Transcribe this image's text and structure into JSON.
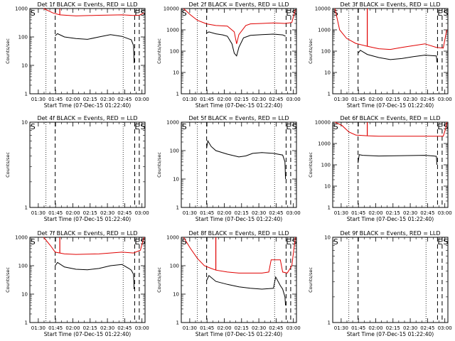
{
  "figure": {
    "x_axis_label": "Start Time (07-Dec-15 01:22:40)",
    "y_axis_label": "Counts/sec",
    "x_tick_labels": [
      "01:30",
      "01:45",
      "02:00",
      "02:15",
      "02:30",
      "02:45",
      "03:00"
    ],
    "y_tick_labels": [
      "1",
      "10",
      "100",
      "1000",
      "10000"
    ],
    "colors": {
      "events": "#000000",
      "lld": "#e00000"
    }
  },
  "chart_data": [
    {
      "type": "line",
      "title": "Det 1f BLACK = Events, RED = LLD",
      "xlabel": "Start Time (07-Dec-15 01:22:40)",
      "ylabel": "Counts/sec",
      "x_unit": "minutes after 01:22:40",
      "xlim": [
        0,
        100
      ],
      "ylim": [
        1,
        1000
      ],
      "y_scale": "log",
      "markers": [
        {
          "label": "S",
          "x": 0.5
        },
        {
          "label": "E",
          "x": 91
        },
        {
          "label": "S",
          "x": 96
        }
      ],
      "dotted_lines": [
        14,
        81
      ],
      "dashed_lines": [
        22,
        91,
        95
      ],
      "series": [
        {
          "name": "Events",
          "color": "#000000",
          "x": [
            22,
            24,
            30,
            40,
            50,
            60,
            70,
            80,
            86,
            88,
            90,
            90.5
          ],
          "y": [
            110,
            130,
            100,
            88,
            82,
            100,
            120,
            105,
            85,
            80,
            50,
            12
          ]
        },
        {
          "name": "LLD",
          "color": "#e00000",
          "x": [
            12,
            20,
            26,
            40,
            60,
            80,
            90,
            95,
            99
          ],
          "y": [
            1000,
            700,
            600,
            550,
            580,
            600,
            570,
            580,
            700
          ],
          "spikes": [
            [
              26,
              1000
            ]
          ]
        }
      ]
    },
    {
      "type": "line",
      "title": "Det 2f BLACK = Events, RED = LLD",
      "xlabel": "Start Time (07-Dec-15 01:22:40)",
      "ylabel": "Counts/sec",
      "x_unit": "minutes after 01:22:40",
      "xlim": [
        0,
        100
      ],
      "ylim": [
        1,
        10000
      ],
      "y_scale": "log",
      "markers": [
        {
          "label": "S",
          "x": 0.5
        },
        {
          "label": "E",
          "x": 91
        },
        {
          "label": "S",
          "x": 96
        }
      ],
      "dotted_lines": [
        14,
        81
      ],
      "dashed_lines": [
        22,
        91,
        95
      ],
      "series": [
        {
          "name": "Events",
          "color": "#000000",
          "x": [
            22,
            24,
            30,
            36,
            40,
            44,
            46,
            48,
            50,
            54,
            60,
            70,
            80,
            88,
            90.5
          ],
          "y": [
            700,
            800,
            650,
            580,
            500,
            220,
            80,
            60,
            150,
            420,
            550,
            600,
            630,
            580,
            500
          ]
        },
        {
          "name": "LLD",
          "color": "#e00000",
          "x": [
            2,
            8,
            14,
            22,
            30,
            40,
            46,
            48,
            50,
            56,
            60,
            70,
            80,
            90,
            96,
            99
          ],
          "y": [
            10000,
            5000,
            2800,
            1900,
            1600,
            1500,
            800,
            220,
            600,
            1600,
            1900,
            2000,
            2100,
            2000,
            2200,
            9000
          ]
        }
      ]
    },
    {
      "type": "line",
      "title": "Det 3f BLACK = Events, RED = LLD",
      "xlabel": "Start Time (07-Dec-15 01:22:40)",
      "ylabel": "Counts/sec",
      "x_unit": "minutes after 01:22:40",
      "xlim": [
        0,
        100
      ],
      "ylim": [
        1,
        10000
      ],
      "y_scale": "log",
      "markers": [
        {
          "label": "S",
          "x": 0.5
        },
        {
          "label": "E",
          "x": 91
        },
        {
          "label": "S",
          "x": 96
        }
      ],
      "dotted_lines": [
        14,
        81
      ],
      "dashed_lines": [
        22,
        91,
        95
      ],
      "series": [
        {
          "name": "Events",
          "color": "#000000",
          "x": [
            22,
            24,
            30,
            40,
            50,
            60,
            70,
            80,
            90,
            90.5
          ],
          "y": [
            80,
            110,
            70,
            50,
            40,
            45,
            55,
            65,
            60,
            30
          ]
        },
        {
          "name": "LLD",
          "color": "#e00000",
          "x": [
            2,
            6,
            12,
            20,
            30,
            40,
            50,
            60,
            70,
            80,
            90,
            96,
            99
          ],
          "y": [
            10000,
            1000,
            400,
            230,
            170,
            130,
            120,
            150,
            180,
            220,
            150,
            140,
            1000
          ],
          "spikes": [
            [
              30,
              10000
            ]
          ]
        }
      ]
    },
    {
      "type": "line",
      "title": "Det 4f BLACK = Events, RED = LLD",
      "xlabel": "Start Time (07-Dec-15 01:22:40)",
      "ylabel": "Counts/sec",
      "x_unit": "minutes after 01:22:40",
      "xlim": [
        0,
        100
      ],
      "ylim": [
        1,
        10
      ],
      "y_scale": "log",
      "markers": [
        {
          "label": "S",
          "x": 0.5
        },
        {
          "label": "E",
          "x": 91
        },
        {
          "label": "S",
          "x": 96
        }
      ],
      "dotted_lines": [
        14,
        81
      ],
      "dashed_lines": [
        22,
        91,
        95
      ],
      "series": []
    },
    {
      "type": "line",
      "title": "Det 5f BLACK = Events, RED = LLD",
      "xlabel": "Start Time (07-Dec-15 01:22:40)",
      "ylabel": "Counts/sec",
      "x_unit": "minutes after 01:22:40",
      "xlim": [
        0,
        100
      ],
      "ylim": [
        1,
        1000
      ],
      "y_scale": "log",
      "markers": [
        {
          "label": "S",
          "x": 0.5
        },
        {
          "label": "E",
          "x": 91
        },
        {
          "label": "S",
          "x": 96
        }
      ],
      "dotted_lines": [
        14,
        81
      ],
      "dashed_lines": [
        22,
        91,
        95
      ],
      "series": [
        {
          "name": "Events",
          "color": "#000000",
          "x": [
            22,
            23,
            26,
            30,
            40,
            50,
            56,
            62,
            70,
            80,
            88,
            90,
            90.5
          ],
          "y": [
            120,
            220,
            140,
            100,
            75,
            60,
            65,
            80,
            85,
            80,
            70,
            40,
            10
          ]
        }
      ]
    },
    {
      "type": "line",
      "title": "Det 6f BLACK = Events, RED = LLD",
      "xlabel": "Start Time (07-Dec-15 01:22:40)",
      "ylabel": "Counts/sec",
      "x_unit": "minutes after 01:22:40",
      "xlim": [
        0,
        100
      ],
      "ylim": [
        1,
        10000
      ],
      "y_scale": "log",
      "markers": [
        {
          "label": "S",
          "x": 0.5
        },
        {
          "label": "E",
          "x": 91
        },
        {
          "label": "S",
          "x": 96
        }
      ],
      "dotted_lines": [
        14,
        81
      ],
      "dashed_lines": [
        22,
        91,
        95
      ],
      "series": [
        {
          "name": "Events",
          "color": "#000000",
          "x": [
            22,
            23,
            26,
            40,
            60,
            80,
            88,
            90,
            90.5
          ],
          "y": [
            120,
            300,
            280,
            260,
            270,
            280,
            260,
            250,
            100
          ]
        },
        {
          "name": "LLD",
          "color": "#e00000",
          "x": [
            2,
            8,
            14,
            20,
            30,
            40,
            60,
            80,
            96,
            98,
            99
          ],
          "y": [
            10000,
            7000,
            3500,
            2500,
            2300,
            2200,
            2200,
            2200,
            2200,
            5000,
            10000
          ],
          "spikes": [
            [
              30,
              10000
            ]
          ]
        }
      ]
    },
    {
      "type": "line",
      "title": "Det 7f BLACK = Events, RED = LLD",
      "xlabel": "Start Time (07-Dec-15 01:22:40)",
      "ylabel": "Counts/sec",
      "x_unit": "minutes after 01:22:40",
      "xlim": [
        0,
        100
      ],
      "ylim": [
        1,
        1000
      ],
      "y_scale": "log",
      "markers": [
        {
          "label": "S",
          "x": 0.5
        },
        {
          "label": "E",
          "x": 91
        },
        {
          "label": "S",
          "x": 96
        }
      ],
      "dotted_lines": [
        14,
        81
      ],
      "dashed_lines": [
        22,
        91,
        95
      ],
      "series": [
        {
          "name": "Events",
          "color": "#000000",
          "x": [
            22,
            24,
            30,
            40,
            50,
            60,
            70,
            80,
            86,
            88,
            90,
            90.5
          ],
          "y": [
            100,
            130,
            90,
            75,
            72,
            80,
            100,
            110,
            80,
            70,
            50,
            15
          ]
        },
        {
          "name": "LLD",
          "color": "#e00000",
          "x": [
            12,
            18,
            22,
            30,
            40,
            60,
            80,
            90,
            96,
            99
          ],
          "y": [
            1000,
            500,
            300,
            260,
            250,
            260,
            300,
            280,
            350,
            1000
          ],
          "spikes": [
            [
              26,
              1000
            ]
          ]
        }
      ]
    },
    {
      "type": "line",
      "title": "Det 8f BLACK = Events, RED = LLD",
      "xlabel": "Start Time (07-Dec-15 01:22:40)",
      "ylabel": "Counts/sec",
      "x_unit": "minutes after 01:22:40",
      "xlim": [
        0,
        100
      ],
      "ylim": [
        1,
        1000
      ],
      "y_scale": "log",
      "markers": [
        {
          "label": "S",
          "x": 0.5
        },
        {
          "label": "E",
          "x": 91
        },
        {
          "label": "S",
          "x": 96
        }
      ],
      "dotted_lines": [
        14,
        81
      ],
      "dashed_lines": [
        22,
        91,
        95
      ],
      "series": [
        {
          "name": "Events",
          "color": "#000000",
          "x": [
            22,
            24,
            30,
            40,
            50,
            60,
            70,
            80,
            82,
            86,
            88,
            90,
            90.5
          ],
          "y": [
            30,
            45,
            28,
            22,
            18,
            16,
            15,
            16,
            40,
            20,
            15,
            8,
            4
          ]
        },
        {
          "name": "LLD",
          "color": "#e00000",
          "x": [
            2,
            8,
            14,
            20,
            26,
            30,
            40,
            50,
            60,
            70,
            76,
            78,
            86,
            88,
            92,
            96,
            99
          ],
          "y": [
            1000,
            400,
            180,
            100,
            80,
            70,
            60,
            55,
            55,
            55,
            60,
            160,
            160,
            60,
            55,
            100,
            1000
          ],
          "spikes": [
            [
              30,
              1000
            ]
          ]
        }
      ]
    },
    {
      "type": "line",
      "title": "Det 9f BLACK = Events, RED = LLD",
      "xlabel": "Start Time (07-Dec-15 01:22:40)",
      "ylabel": "Counts/sec",
      "x_unit": "minutes after 01:22:40",
      "xlim": [
        0,
        100
      ],
      "ylim": [
        1,
        10
      ],
      "y_scale": "log",
      "markers": [
        {
          "label": "S",
          "x": 0.5
        },
        {
          "label": "E",
          "x": 91
        },
        {
          "label": "S",
          "x": 96
        }
      ],
      "dotted_lines": [
        14,
        81
      ],
      "dashed_lines": [
        22,
        91,
        95
      ],
      "series": []
    }
  ]
}
